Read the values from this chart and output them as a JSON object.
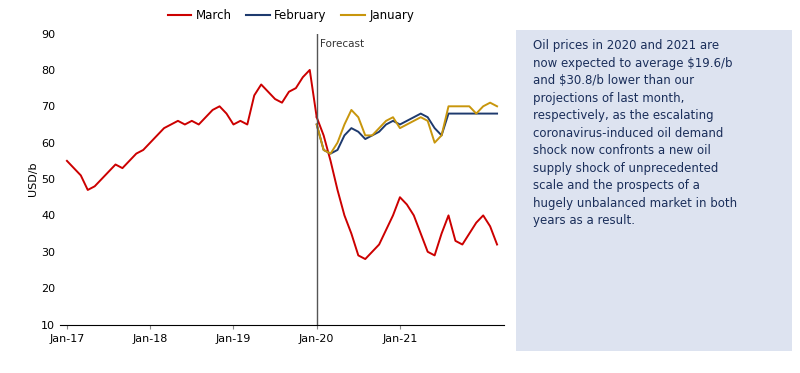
{
  "ylabel": "USD/b",
  "ylim": [
    10,
    90
  ],
  "yticks": [
    10,
    20,
    30,
    40,
    50,
    60,
    70,
    80,
    90
  ],
  "forecast_label": "Forecast",
  "legend_entries": [
    "March",
    "February",
    "January"
  ],
  "line_colors": [
    "#cc0000",
    "#1e3a6e",
    "#c8960c"
  ],
  "text_box_color": "#dde3f0",
  "text_content": "Oil prices in 2020 and 2021 are\nnow expected to average $19.6/b\nand $30.8/b lower than our\nprojections of last month,\nrespectively, as the escalating\ncoronavirus-induced oil demand\nshock now confronts a new oil\nsupply shock of unprecedented\nscale and the prospects of a\nhugely unbalanced market in both\nyears as a result.",
  "text_color": "#1a2e5a",
  "march_hist_x": [
    0,
    1,
    2,
    3,
    4,
    5,
    6,
    7,
    8,
    9,
    10,
    11,
    12,
    13,
    14,
    15,
    16,
    17,
    18,
    19,
    20,
    21,
    22,
    23,
    24,
    25,
    26,
    27,
    28,
    29,
    30,
    31,
    32,
    33,
    34,
    35,
    36
  ],
  "march_hist_y": [
    55,
    53,
    51,
    47,
    48,
    50,
    52,
    54,
    53,
    55,
    57,
    58,
    60,
    62,
    64,
    65,
    66,
    65,
    66,
    65,
    67,
    69,
    70,
    68,
    65,
    66,
    65,
    73,
    76,
    74,
    72,
    71,
    74,
    75,
    78,
    80,
    67
  ],
  "march_fore_x": [
    36,
    37,
    38,
    39,
    40,
    41,
    42,
    43,
    44,
    45,
    46,
    47,
    48,
    49,
    50,
    51,
    52,
    53,
    54,
    55,
    56,
    57,
    58,
    59,
    60,
    61,
    62
  ],
  "march_fore_y": [
    67,
    62,
    55,
    47,
    40,
    35,
    29,
    28,
    30,
    32,
    36,
    40,
    45,
    43,
    40,
    35,
    30,
    29,
    35,
    40,
    33,
    32,
    35,
    38,
    40,
    37,
    32
  ],
  "feb_x": [
    36,
    37,
    38,
    39,
    40,
    41,
    42,
    43,
    44,
    45,
    46,
    47,
    48,
    49,
    50,
    51,
    52,
    53,
    54,
    55,
    56,
    57,
    58,
    59,
    60,
    61,
    62
  ],
  "feb_y": [
    65,
    58,
    57,
    58,
    62,
    64,
    63,
    61,
    62,
    63,
    65,
    66,
    65,
    66,
    67,
    68,
    67,
    64,
    62,
    68,
    68,
    68,
    68,
    68,
    68,
    68,
    68
  ],
  "jan_x": [
    36,
    37,
    38,
    39,
    40,
    41,
    42,
    43,
    44,
    45,
    46,
    47,
    48,
    49,
    50,
    51,
    52,
    53,
    54,
    55,
    56,
    57,
    58,
    59,
    60,
    61,
    62
  ],
  "jan_y": [
    65,
    58,
    57,
    60,
    65,
    69,
    67,
    62,
    62,
    64,
    66,
    67,
    64,
    65,
    66,
    67,
    66,
    60,
    62,
    70,
    70,
    70,
    70,
    68,
    70,
    71,
    70
  ],
  "forecast_x": 36,
  "xtick_positions": [
    0,
    12,
    24,
    36,
    48
  ],
  "xtick_labels": [
    "Jan-17",
    "Jan-18",
    "Jan-19",
    "Jan-20",
    "Jan-21"
  ],
  "xlim": [
    -1,
    63
  ]
}
